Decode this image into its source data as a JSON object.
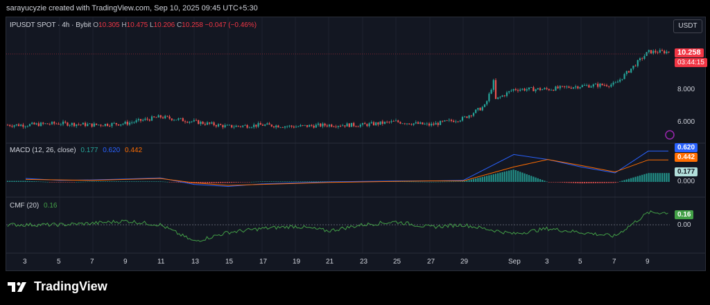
{
  "header": {
    "created_by": "sarayucyzie created with TradingView.com, Sep 10, 2025 09:45 UTC+5:30"
  },
  "symbol_legend": {
    "symbol": "IPUSDT SPOT · 4h · Bybit",
    "o_label": "O",
    "o_value": "10.305",
    "h_label": "H",
    "h_value": "10.475",
    "l_label": "L",
    "l_value": "10.206",
    "c_label": "C",
    "c_value": "10.258",
    "change": "−0.047 (−0.46%)"
  },
  "currency_button": "USDT",
  "price_axis": {
    "labels": [
      "8.000",
      "6.000"
    ],
    "last_price": "10.258",
    "countdown": "03:44:15"
  },
  "macd": {
    "title": "MACD (12, 26, close)",
    "hist_value": "0.177",
    "macd_value": "0.620",
    "signal_value": "0.442",
    "axis_zero": "0.000",
    "colors": {
      "macd": "#2962ff",
      "signal": "#ff6d00",
      "hist_up": "#26a69a",
      "hist_down": "#ef5350"
    }
  },
  "cmf": {
    "title": "CMF (20)",
    "value": "0.16",
    "axis_zero": "0.00",
    "color": "#43a047"
  },
  "time_axis": {
    "labels": [
      "3",
      "5",
      "7",
      "9",
      "11",
      "13",
      "15",
      "17",
      "19",
      "21",
      "23",
      "25",
      "27",
      "29",
      "Sep",
      "3",
      "5",
      "7",
      "9"
    ]
  },
  "brand": {
    "name": "TradingView"
  },
  "chart_data": [
    {
      "type": "candlestick",
      "title": "IPUSDT SPOT · 4h · Bybit",
      "x": [
        "3",
        "5",
        "7",
        "9",
        "11",
        "13",
        "15",
        "17",
        "19",
        "21",
        "23",
        "25",
        "27",
        "29",
        "Sep",
        "3",
        "5",
        "7",
        "9"
      ],
      "series": [
        {
          "values": [
            5.8,
            5.9,
            5.8,
            5.9,
            6.3,
            6.0,
            5.7,
            5.8,
            5.7,
            5.8,
            5.8,
            6.0,
            5.8,
            6.2,
            8.0,
            8.0,
            8.2,
            8.3,
            10.3
          ]
        }
      ],
      "ylim": [
        5.0,
        11.3
      ],
      "last": 10.258
    },
    {
      "type": "line",
      "title": "MACD (12, 26, close)",
      "x": [
        "3",
        "5",
        "7",
        "9",
        "11",
        "13",
        "15",
        "17",
        "19",
        "21",
        "23",
        "25",
        "27",
        "29",
        "Sep",
        "3",
        "5",
        "7",
        "9"
      ],
      "series": [
        {
          "values": [
            0.07,
            0.03,
            0.04,
            0.06,
            0.08,
            -0.05,
            -0.09,
            -0.04,
            -0.02,
            0.0,
            0.01,
            0.02,
            0.02,
            0.03,
            0.55,
            0.45,
            0.3,
            0.18,
            0.62
          ]
        },
        {
          "values": [
            0.05,
            0.04,
            0.03,
            0.05,
            0.07,
            -0.02,
            -0.07,
            -0.05,
            -0.03,
            -0.01,
            0.0,
            0.01,
            0.02,
            0.02,
            0.3,
            0.45,
            0.33,
            0.2,
            0.442
          ]
        }
      ],
      "ylim": [
        -0.2,
        0.8
      ]
    },
    {
      "type": "line",
      "title": "CMF (20)",
      "x": [
        "3",
        "5",
        "7",
        "9",
        "11",
        "13",
        "15",
        "17",
        "19",
        "21",
        "23",
        "25",
        "27",
        "29",
        "Sep",
        "3",
        "5",
        "7",
        "9"
      ],
      "series": [
        {
          "values": [
            0.0,
            0.0,
            0.02,
            0.05,
            0.0,
            -0.22,
            -0.1,
            -0.05,
            -0.02,
            -0.08,
            0.0,
            0.04,
            -0.03,
            0.0,
            -0.12,
            -0.05,
            -0.1,
            -0.15,
            0.16
          ]
        }
      ],
      "ylim": [
        -0.3,
        0.25
      ]
    }
  ]
}
